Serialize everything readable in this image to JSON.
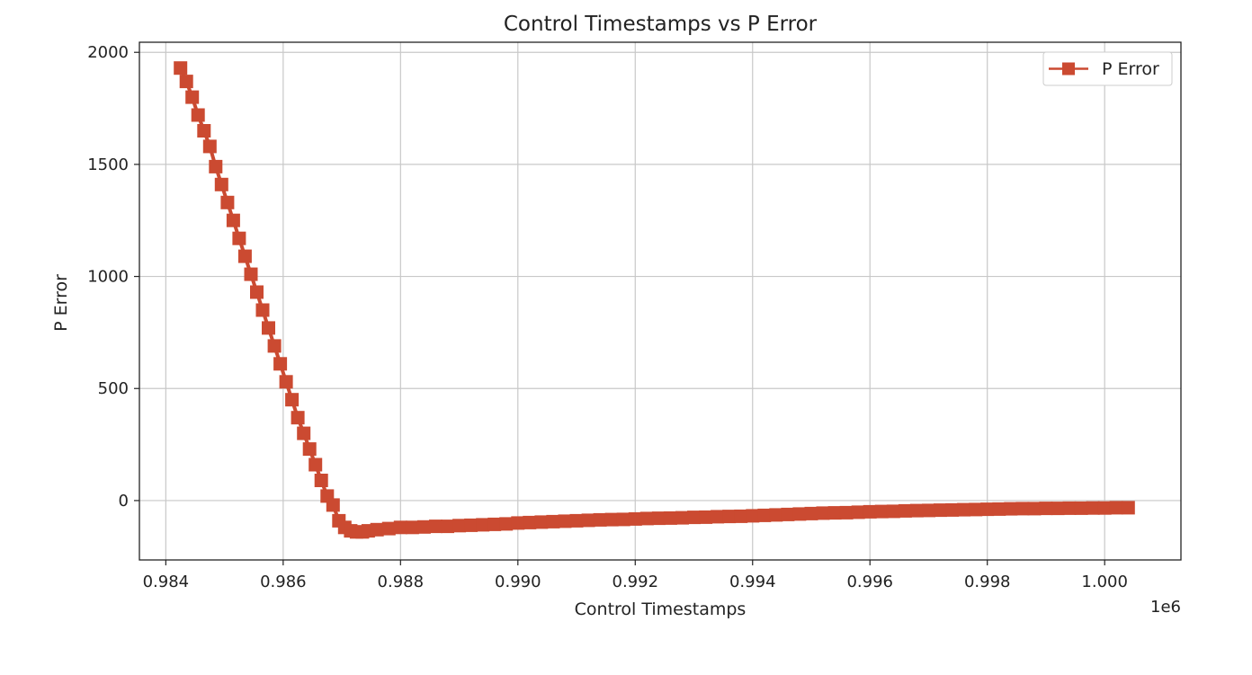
{
  "chart_data": {
    "type": "line",
    "title": "Control Timestamps vs P Error",
    "xlabel": "Control Timestamps",
    "ylabel": "P Error",
    "x_offset_text": "1e6",
    "xlim": [
      983550,
      1001300
    ],
    "ylim": [
      -265,
      2045
    ],
    "xticks": [
      984000,
      986000,
      988000,
      990000,
      992000,
      994000,
      996000,
      998000,
      1000000
    ],
    "xtick_labels": [
      "0.984",
      "0.986",
      "0.988",
      "0.990",
      "0.992",
      "0.994",
      "0.996",
      "0.998",
      "1.000"
    ],
    "yticks": [
      0,
      500,
      1000,
      1500,
      2000
    ],
    "ytick_labels": [
      "0",
      "500",
      "1000",
      "1500",
      "2000"
    ],
    "grid": true,
    "legend_position": "top-right",
    "colors": {
      "series": "#CB4A31",
      "grid": "#c8c8c8",
      "axes": "#222222"
    },
    "series": [
      {
        "name": "P Error",
        "marker": "square",
        "x": [
          984250,
          984350,
          984450,
          984550,
          984650,
          984750,
          984850,
          984950,
          985050,
          985150,
          985250,
          985350,
          985450,
          985550,
          985650,
          985750,
          985850,
          985950,
          986050,
          986150,
          986250,
          986350,
          986450,
          986550,
          986650,
          986750,
          986850,
          986950,
          987050,
          987150,
          987250,
          987350,
          987450,
          987600,
          987800,
          988000,
          988200,
          988400,
          988600,
          988800,
          989000,
          989200,
          989400,
          989600,
          989800,
          990000,
          990200,
          990400,
          990600,
          990800,
          991000,
          991200,
          991400,
          991600,
          991800,
          992000,
          992200,
          992400,
          992600,
          992800,
          993000,
          993200,
          993400,
          993600,
          993800,
          994000,
          994200,
          994400,
          994600,
          994800,
          995000,
          995200,
          995400,
          995600,
          995800,
          996000,
          996200,
          996400,
          996600,
          996800,
          997000,
          997200,
          997400,
          997600,
          997800,
          998000,
          998200,
          998400,
          998600,
          998800,
          999000,
          999200,
          999400,
          999600,
          999800,
          1000000,
          1000200,
          1000400
        ],
        "y": [
          1930,
          1870,
          1800,
          1720,
          1650,
          1580,
          1490,
          1410,
          1330,
          1250,
          1170,
          1090,
          1010,
          930,
          850,
          770,
          690,
          610,
          530,
          450,
          370,
          300,
          230,
          160,
          90,
          20,
          -20,
          -90,
          -120,
          -135,
          -140,
          -140,
          -135,
          -130,
          -125,
          -120,
          -120,
          -118,
          -115,
          -115,
          -112,
          -110,
          -108,
          -106,
          -104,
          -100,
          -98,
          -96,
          -94,
          -92,
          -90,
          -88,
          -86,
          -85,
          -84,
          -82,
          -80,
          -79,
          -78,
          -77,
          -75,
          -74,
          -72,
          -71,
          -70,
          -68,
          -66,
          -64,
          -62,
          -60,
          -58,
          -56,
          -55,
          -54,
          -52,
          -50,
          -49,
          -48,
          -46,
          -45,
          -44,
          -43,
          -42,
          -41,
          -40,
          -39,
          -38,
          -37,
          -36,
          -36,
          -35,
          -35,
          -34,
          -34,
          -33,
          -33,
          -32,
          -32
        ]
      }
    ]
  }
}
